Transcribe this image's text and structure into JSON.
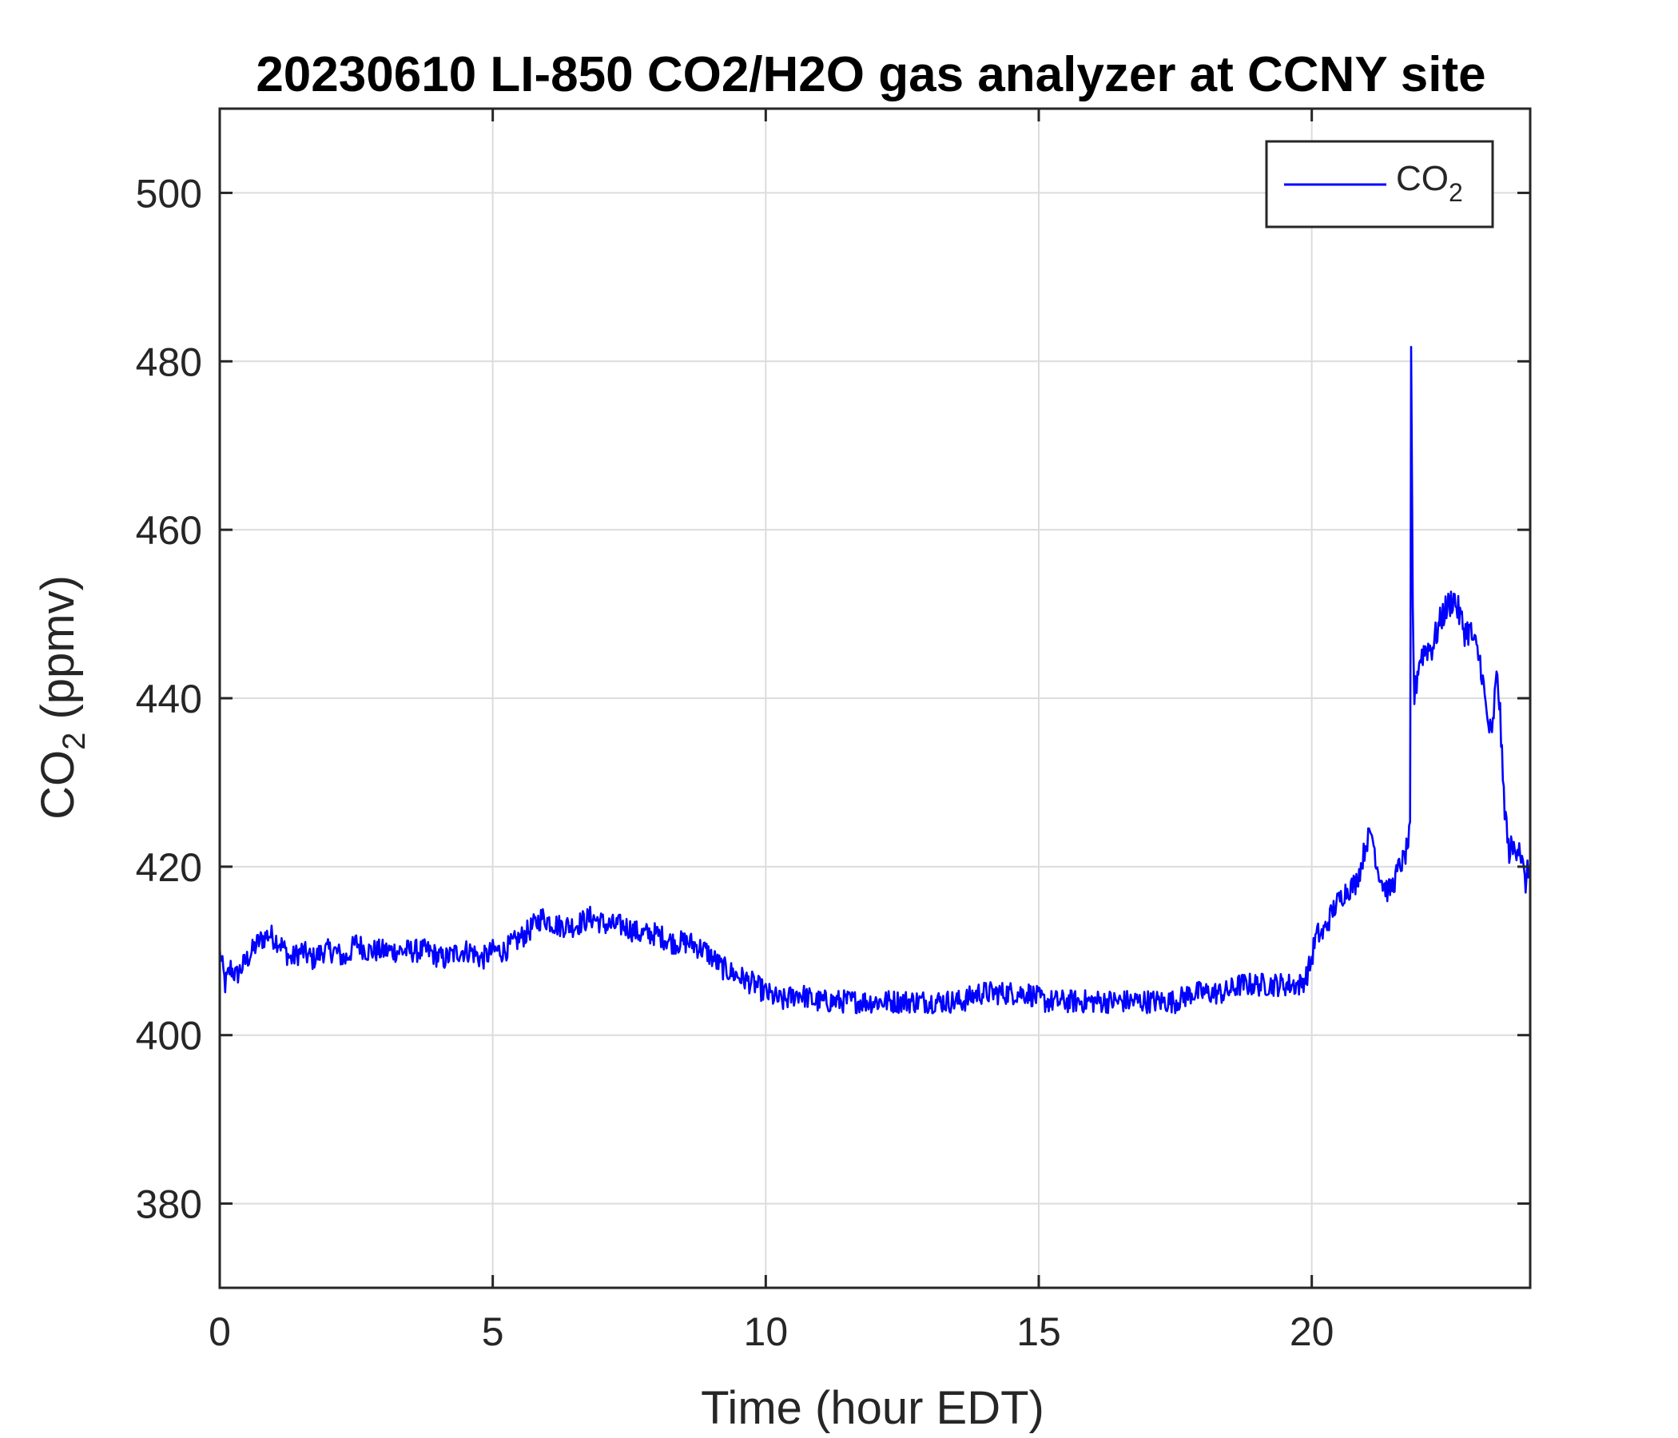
{
  "chart_data": {
    "type": "line",
    "title": "20230610 LI-850 CO2/H2O gas analyzer at CCNY site",
    "xlabel": "Time (hour EDT)",
    "ylabel": {
      "main": "CO",
      "sub": "2",
      "tail": " (ppmv)"
    },
    "xlim": [
      0,
      24
    ],
    "ylim": [
      370,
      510
    ],
    "xticks": [
      0,
      5,
      10,
      15,
      20
    ],
    "yticks": [
      380,
      400,
      420,
      440,
      460,
      480,
      500
    ],
    "grid": true,
    "legend": {
      "placement": "top-right",
      "label_main": "CO",
      "label_sub": "2"
    },
    "series": [
      {
        "name": "CO2",
        "color": "#0000ff",
        "x": [
          0,
          0.1,
          0.2,
          0.3,
          0.5,
          0.7,
          0.9,
          1.1,
          1.3,
          1.5,
          1.7,
          1.9,
          2.1,
          2.3,
          2.5,
          2.7,
          2.9,
          3.2,
          3.5,
          3.8,
          4.1,
          4.4,
          4.6,
          4.8,
          5.0,
          5.2,
          5.4,
          5.6,
          5.9,
          6.2,
          6.5,
          6.8,
          7.1,
          7.4,
          7.7,
          8.0,
          8.3,
          8.6,
          8.9,
          9.2,
          9.5,
          9.8,
          10.0,
          10.3,
          10.6,
          10.9,
          11.2,
          11.5,
          11.8,
          12.1,
          12.4,
          12.7,
          13.0,
          13.3,
          13.6,
          13.9,
          14.2,
          14.5,
          14.8,
          15.1,
          15.4,
          15.7,
          16.0,
          16.3,
          16.6,
          16.9,
          17.2,
          17.5,
          17.8,
          18.1,
          18.4,
          18.7,
          19.0,
          19.3,
          19.6,
          19.8,
          19.9,
          20.0,
          20.05,
          20.1,
          20.2,
          20.4,
          20.6,
          20.8,
          20.9,
          21.0,
          21.1,
          21.2,
          21.3,
          21.4,
          21.5,
          21.6,
          21.7,
          21.8,
          21.82,
          21.85,
          21.88,
          21.92,
          21.95,
          22.0,
          22.1,
          22.2,
          22.3,
          22.4,
          22.5,
          22.6,
          22.7,
          22.8,
          22.9,
          23.0,
          23.1,
          23.2,
          23.3,
          23.35,
          23.4,
          23.45,
          23.5,
          23.6,
          23.7,
          23.8,
          23.9,
          24.0
        ],
        "values": [
          410,
          406,
          408,
          407,
          409,
          411,
          412,
          411,
          409,
          410,
          409,
          410,
          410,
          409,
          411,
          410,
          410,
          410,
          410,
          410,
          409,
          410,
          410,
          409,
          410,
          410,
          411,
          412,
          414,
          413,
          413,
          414,
          413,
          413,
          412,
          412,
          411,
          411,
          410,
          408,
          407,
          406,
          405,
          404,
          405,
          404,
          404,
          404,
          404,
          404,
          404,
          404,
          404,
          404,
          404,
          405,
          405,
          405,
          405,
          404,
          404,
          404,
          404,
          404,
          404,
          404,
          404,
          404,
          405,
          405,
          405,
          406,
          406,
          406,
          406,
          406,
          407,
          409,
          411,
          412,
          412,
          415,
          417,
          418,
          420,
          423,
          424,
          420,
          418,
          417,
          418,
          420,
          421,
          424,
          480,
          450,
          440,
          442,
          444,
          445,
          446,
          446,
          448,
          450,
          451,
          452,
          450,
          448,
          448,
          446,
          444,
          438,
          435,
          440,
          443,
          438,
          430,
          422,
          422,
          423,
          418,
          420
        ]
      }
    ]
  }
}
